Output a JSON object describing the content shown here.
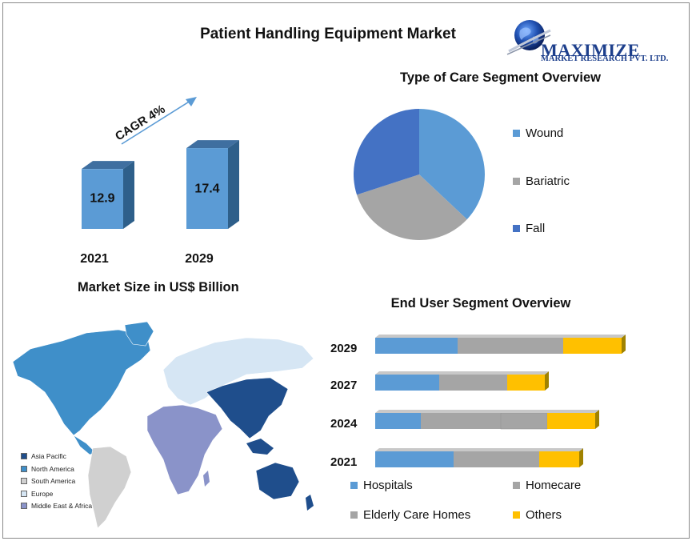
{
  "title": "Patient Handling Equipment Market",
  "logo": {
    "name": "MAXIMIZE",
    "subtitle": "MARKET RESEARCH PVT. LTD."
  },
  "colors": {
    "bar_front": "#5b9bd5",
    "bar_side": "#2e5f8a",
    "bar_top": "#3f6fa0",
    "wound": "#5b9bd5",
    "bariatric": "#a5a5a5",
    "fall": "#4472c4",
    "others": "#ffc000",
    "stack_shadow": "#a08200"
  },
  "chart_data": [
    {
      "type": "bar",
      "categories": [
        "2021",
        "2029"
      ],
      "values": [
        12.9,
        17.4
      ],
      "title": "",
      "xlabel": "Market Size in US$ Billion",
      "ylabel": "",
      "annotation": "CAGR 4%"
    },
    {
      "type": "pie",
      "title": "Type of Care Segment Overview",
      "labels": [
        "Wound",
        "Bariatric",
        "Fall"
      ],
      "values": [
        37,
        33,
        30
      ],
      "legend": "right"
    },
    {
      "type": "bar",
      "orientation": "horizontal",
      "stacked": true,
      "title": "End User  Segment  Overview",
      "categories": [
        "2029",
        "2027",
        "2024",
        "2021"
      ],
      "series": [
        {
          "name": "Hospitals",
          "values": [
            1.03,
            0.8,
            0.57,
            0.98
          ]
        },
        {
          "name": "Homecare",
          "values": [
            1.32,
            0.85,
            1.0,
            1.07
          ]
        },
        {
          "name": "Elderly Care Homes",
          "values": [
            0.0,
            0.0,
            0.58,
            0.0
          ]
        },
        {
          "name": "Others",
          "values": [
            0.73,
            0.47,
            0.6,
            0.5
          ]
        }
      ],
      "legend": "bottom"
    }
  ],
  "map_legend": [
    {
      "label": "Asia Pacific",
      "color": "#1f4e8c"
    },
    {
      "label": "North America",
      "color": "#3f8fc9"
    },
    {
      "label": "South America",
      "color": "#d0d0d0"
    },
    {
      "label": "Europe",
      "color": "#d6e6f4"
    },
    {
      "label": "Middle East & Africa",
      "color": "#8a93c9"
    }
  ]
}
